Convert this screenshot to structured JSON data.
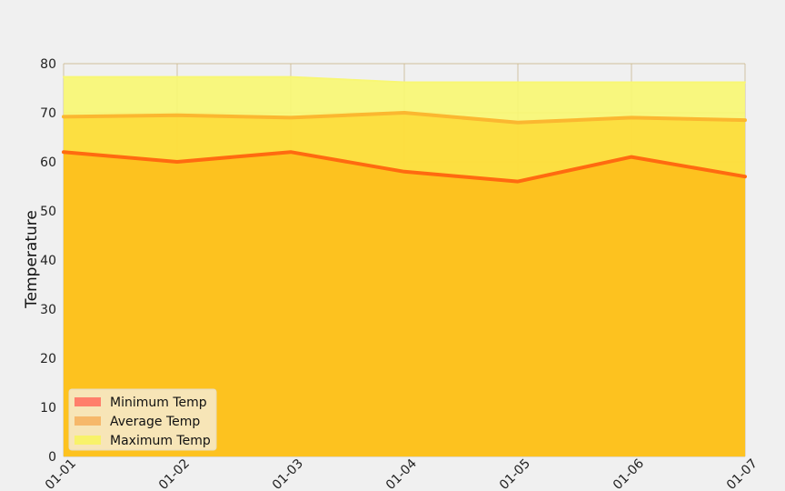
{
  "chart_data": {
    "type": "area",
    "title": "",
    "xlabel": "",
    "ylabel": "Temperature",
    "x": [
      "01-01",
      "01-02",
      "01-03",
      "01-04",
      "01-05",
      "01-06",
      "01-07"
    ],
    "ylim": [
      0,
      80
    ],
    "yticks": [
      0,
      10,
      20,
      30,
      40,
      50,
      60,
      70,
      80
    ],
    "grid": true,
    "legend_position": "lower-left",
    "series": [
      {
        "name": "Minimum Temp",
        "values": [
          62,
          60,
          62,
          58,
          56,
          61,
          57
        ],
        "fill": "#fdbf1c",
        "line": "#ff6a10",
        "swatch": "#ff7f6b"
      },
      {
        "name": "Average Temp",
        "values": [
          69.2,
          69.5,
          69,
          70,
          68,
          69,
          68.5
        ],
        "fill": "#fcdc3c",
        "line": "#fbb730",
        "swatch": "#f6b86a"
      },
      {
        "name": "Maximum Temp",
        "values": [
          77.3,
          77.3,
          77.3,
          76.2,
          76.2,
          76.2,
          76.2
        ],
        "fill": "#f8f774",
        "line": "#f8f774",
        "swatch": "#f8f26a"
      }
    ]
  }
}
